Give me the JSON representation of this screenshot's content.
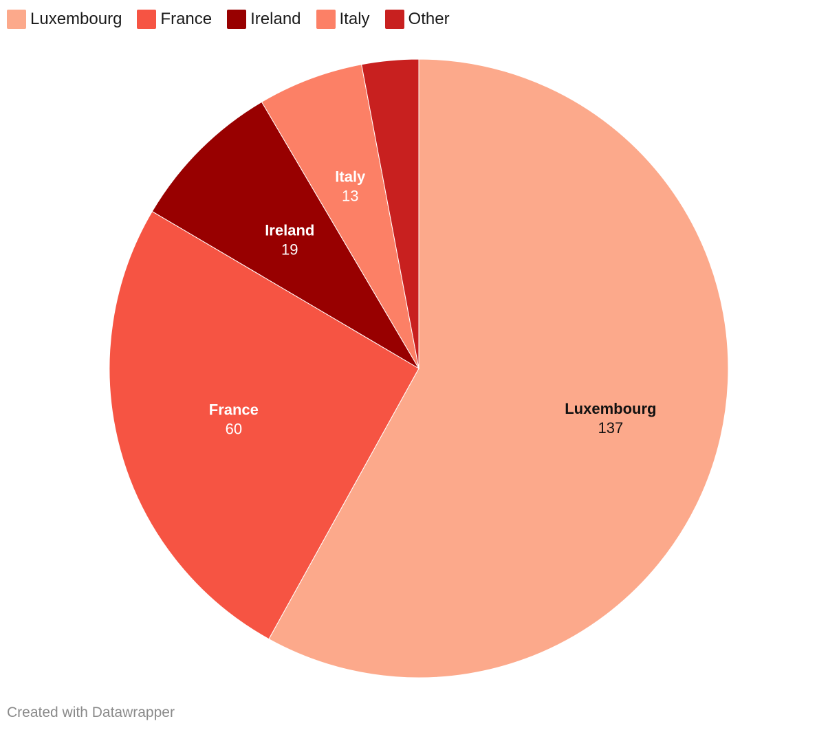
{
  "chart_data": {
    "type": "pie",
    "categories": [
      "Luxembourg",
      "France",
      "Ireland",
      "Italy",
      "Other"
    ],
    "values": [
      137,
      60,
      19,
      13,
      7
    ],
    "colors": [
      "#fca98b",
      "#f65443",
      "#980000",
      "#fc8066",
      "#c8201f"
    ],
    "value_labels": [
      "137",
      "60",
      "19",
      "13",
      ""
    ],
    "start": "12 o'clock",
    "direction": "clockwise",
    "legend_position": "top-left"
  },
  "legend": {
    "items": [
      {
        "label": "Luxembourg",
        "color": "#fca98b"
      },
      {
        "label": "France",
        "color": "#f65443"
      },
      {
        "label": "Ireland",
        "color": "#980000"
      },
      {
        "label": "Italy",
        "color": "#fc8066"
      },
      {
        "label": "Other",
        "color": "#c8201f"
      }
    ]
  },
  "footer": {
    "credit": "Created with Datawrapper"
  }
}
